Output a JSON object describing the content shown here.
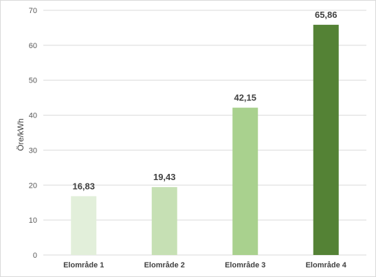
{
  "chart_data": {
    "type": "bar",
    "categories": [
      "Elområde 1",
      "Elområde 2",
      "Elområde 3",
      "Elområde 4"
    ],
    "values": [
      16.83,
      19.43,
      42.15,
      65.86
    ],
    "data_labels": [
      "16,83",
      "19,43",
      "42,15",
      "65,86"
    ],
    "colors": [
      "#e2efda",
      "#c6e0b4",
      "#a9d18e",
      "#548235"
    ],
    "title": "",
    "xlabel": "",
    "ylabel": "Öre/kWh",
    "ylim": [
      0,
      70
    ],
    "yticks": [
      0,
      10,
      20,
      30,
      40,
      50,
      60,
      70
    ],
    "grid": true,
    "gridline_color": "#d9d9d9",
    "legend": "none"
  }
}
